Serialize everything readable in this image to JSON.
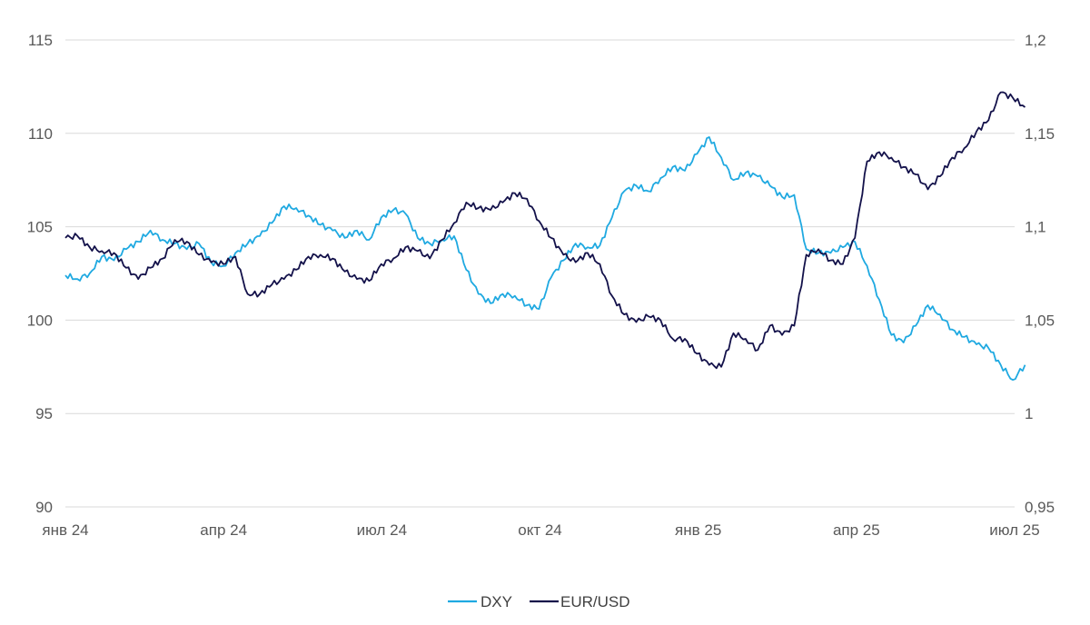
{
  "chart_data": {
    "type": "line",
    "title": "",
    "xlabel": "",
    "ylabel": "",
    "grid": true,
    "legend_position": "bottom-center",
    "x_ticks": [
      "янв 24",
      "апр 24",
      "июл 24",
      "окт 24",
      "янв 25",
      "апр 25",
      "июл 25"
    ],
    "y_left": {
      "ylim": [
        90,
        115
      ],
      "ticks": [
        "90",
        "95",
        "100",
        "105",
        "110",
        "115"
      ]
    },
    "y_right": {
      "ylim": [
        0.95,
        1.2
      ],
      "ticks": [
        "0,95",
        "1",
        "1,05",
        "1,1",
        "1,15",
        "1,2"
      ]
    },
    "series": [
      {
        "name": "DXY",
        "axis": "left",
        "color": "#1fa9e1",
        "x": [
          "2024-01-01",
          "2024-01-08",
          "2024-01-15",
          "2024-01-22",
          "2024-01-29",
          "2024-02-05",
          "2024-02-12",
          "2024-02-19",
          "2024-02-26",
          "2024-03-04",
          "2024-03-11",
          "2024-03-18",
          "2024-03-25",
          "2024-04-01",
          "2024-04-08",
          "2024-04-15",
          "2024-04-22",
          "2024-04-29",
          "2024-05-06",
          "2024-05-13",
          "2024-05-20",
          "2024-05-27",
          "2024-06-03",
          "2024-06-10",
          "2024-06-17",
          "2024-06-24",
          "2024-07-01",
          "2024-07-08",
          "2024-07-15",
          "2024-07-22",
          "2024-07-29",
          "2024-08-05",
          "2024-08-12",
          "2024-08-19",
          "2024-08-26",
          "2024-09-02",
          "2024-09-09",
          "2024-09-16",
          "2024-09-23",
          "2024-09-30",
          "2024-10-07",
          "2024-10-14",
          "2024-10-21",
          "2024-10-28",
          "2024-11-04",
          "2024-11-11",
          "2024-11-18",
          "2024-11-25",
          "2024-12-02",
          "2024-12-09",
          "2024-12-16",
          "2024-12-23",
          "2024-12-30",
          "2025-01-06",
          "2025-01-13",
          "2025-01-20",
          "2025-01-27",
          "2025-02-03",
          "2025-02-10",
          "2025-02-17",
          "2025-02-24",
          "2025-03-03",
          "2025-03-10",
          "2025-03-17",
          "2025-03-24",
          "2025-03-31",
          "2025-04-07",
          "2025-04-14",
          "2025-04-21",
          "2025-04-28",
          "2025-05-05",
          "2025-05-12",
          "2025-05-19",
          "2025-05-26",
          "2025-06-02",
          "2025-06-09",
          "2025-06-16",
          "2025-06-23",
          "2025-06-30",
          "2025-07-07"
        ],
        "values": [
          102.4,
          102.2,
          102.5,
          103.4,
          103.2,
          103.8,
          104.2,
          104.8,
          104.3,
          104.1,
          103.8,
          104.1,
          103.1,
          102.9,
          103.6,
          104.1,
          104.5,
          105.2,
          106.1,
          106.0,
          105.6,
          105.1,
          104.8,
          104.4,
          104.8,
          104.3,
          105.5,
          105.9,
          105.7,
          104.4,
          104.1,
          104.3,
          104.5,
          102.7,
          101.4,
          100.9,
          101.4,
          101.3,
          100.8,
          100.6,
          102.3,
          103.2,
          104.1,
          103.9,
          104.0,
          105.5,
          106.9,
          107.2,
          106.9,
          107.6,
          108.2,
          108.0,
          108.9,
          109.8,
          108.7,
          107.5,
          107.9,
          107.7,
          107.2,
          106.6,
          106.7,
          103.8,
          103.6,
          103.6,
          103.9,
          104.2,
          102.9,
          101.1,
          99.2,
          98.8,
          99.7,
          100.8,
          100.3,
          99.5,
          99.1,
          98.7,
          98.5,
          97.6,
          96.8,
          97.6
        ]
      },
      {
        "name": "EUR/USD",
        "axis": "right",
        "color": "#13114a",
        "x": [
          "2024-01-01",
          "2024-01-08",
          "2024-01-15",
          "2024-01-22",
          "2024-01-29",
          "2024-02-05",
          "2024-02-12",
          "2024-02-19",
          "2024-02-26",
          "2024-03-04",
          "2024-03-11",
          "2024-03-18",
          "2024-03-25",
          "2024-04-01",
          "2024-04-08",
          "2024-04-15",
          "2024-04-22",
          "2024-04-29",
          "2024-05-06",
          "2024-05-13",
          "2024-05-20",
          "2024-05-27",
          "2024-06-03",
          "2024-06-10",
          "2024-06-17",
          "2024-06-24",
          "2024-07-01",
          "2024-07-08",
          "2024-07-15",
          "2024-07-22",
          "2024-07-29",
          "2024-08-05",
          "2024-08-12",
          "2024-08-19",
          "2024-08-26",
          "2024-09-02",
          "2024-09-09",
          "2024-09-16",
          "2024-09-23",
          "2024-09-30",
          "2024-10-07",
          "2024-10-14",
          "2024-10-21",
          "2024-10-28",
          "2024-11-04",
          "2024-11-11",
          "2024-11-18",
          "2024-11-25",
          "2024-12-02",
          "2024-12-09",
          "2024-12-16",
          "2024-12-23",
          "2024-12-30",
          "2025-01-06",
          "2025-01-13",
          "2025-01-20",
          "2025-01-27",
          "2025-02-03",
          "2025-02-10",
          "2025-02-17",
          "2025-02-24",
          "2025-03-03",
          "2025-03-10",
          "2025-03-17",
          "2025-03-24",
          "2025-03-31",
          "2025-04-07",
          "2025-04-14",
          "2025-04-21",
          "2025-04-28",
          "2025-05-05",
          "2025-05-12",
          "2025-05-19",
          "2025-05-26",
          "2025-06-02",
          "2025-06-09",
          "2025-06-16",
          "2025-06-23",
          "2025-06-30",
          "2025-07-07"
        ],
        "values": [
          1.094,
          1.095,
          1.089,
          1.087,
          1.086,
          1.078,
          1.072,
          1.078,
          1.083,
          1.093,
          1.092,
          1.085,
          1.081,
          1.08,
          1.084,
          1.064,
          1.064,
          1.069,
          1.072,
          1.077,
          1.084,
          1.085,
          1.083,
          1.076,
          1.072,
          1.071,
          1.08,
          1.083,
          1.089,
          1.087,
          1.083,
          1.093,
          1.102,
          1.113,
          1.11,
          1.109,
          1.113,
          1.118,
          1.115,
          1.103,
          1.094,
          1.085,
          1.081,
          1.086,
          1.08,
          1.063,
          1.053,
          1.049,
          1.052,
          1.05,
          1.04,
          1.04,
          1.032,
          1.026,
          1.025,
          1.043,
          1.04,
          1.034,
          1.047,
          1.042,
          1.047,
          1.085,
          1.088,
          1.082,
          1.08,
          1.094,
          1.135,
          1.14,
          1.137,
          1.132,
          1.128,
          1.12,
          1.127,
          1.137,
          1.142,
          1.151,
          1.157,
          1.172,
          1.169,
          1.164
        ]
      }
    ]
  }
}
